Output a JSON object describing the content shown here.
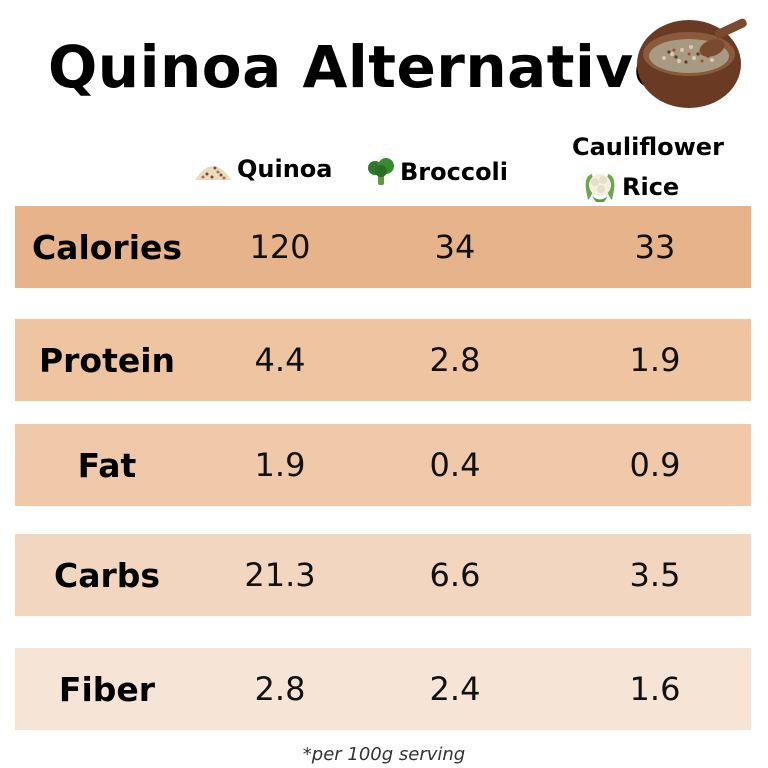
{
  "title": "Quinoa Alternatives",
  "columns": {
    "quinoa": "Quinoa",
    "broccoli": "Broccoli",
    "cauliflower_line1": "Cauliflower",
    "cauliflower_line2": "Rice"
  },
  "icons": {
    "title": "quinoa-bowl-icon",
    "quinoa": "quinoa-grains-icon",
    "broccoli": "broccoli-icon",
    "cauliflower": "cauliflower-icon"
  },
  "rows": [
    {
      "label": "Calories",
      "quinoa": "120",
      "broccoli": "34",
      "cauliflower": "33"
    },
    {
      "label": "Protein",
      "quinoa": "4.4",
      "broccoli": "2.8",
      "cauliflower": "1.9"
    },
    {
      "label": "Fat",
      "quinoa": "1.9",
      "broccoli": "0.4",
      "cauliflower": "0.9"
    },
    {
      "label": "Carbs",
      "quinoa": "21.3",
      "broccoli": "6.6",
      "cauliflower": "3.5"
    },
    {
      "label": "Fiber",
      "quinoa": "2.8",
      "broccoli": "2.4",
      "cauliflower": "1.6"
    }
  ],
  "row_colors": [
    "#e6b38a",
    "#eec4a1",
    "#efc9aa",
    "#f2d6bf",
    "#f6e5d7"
  ],
  "footnote": "*per 100g serving"
}
